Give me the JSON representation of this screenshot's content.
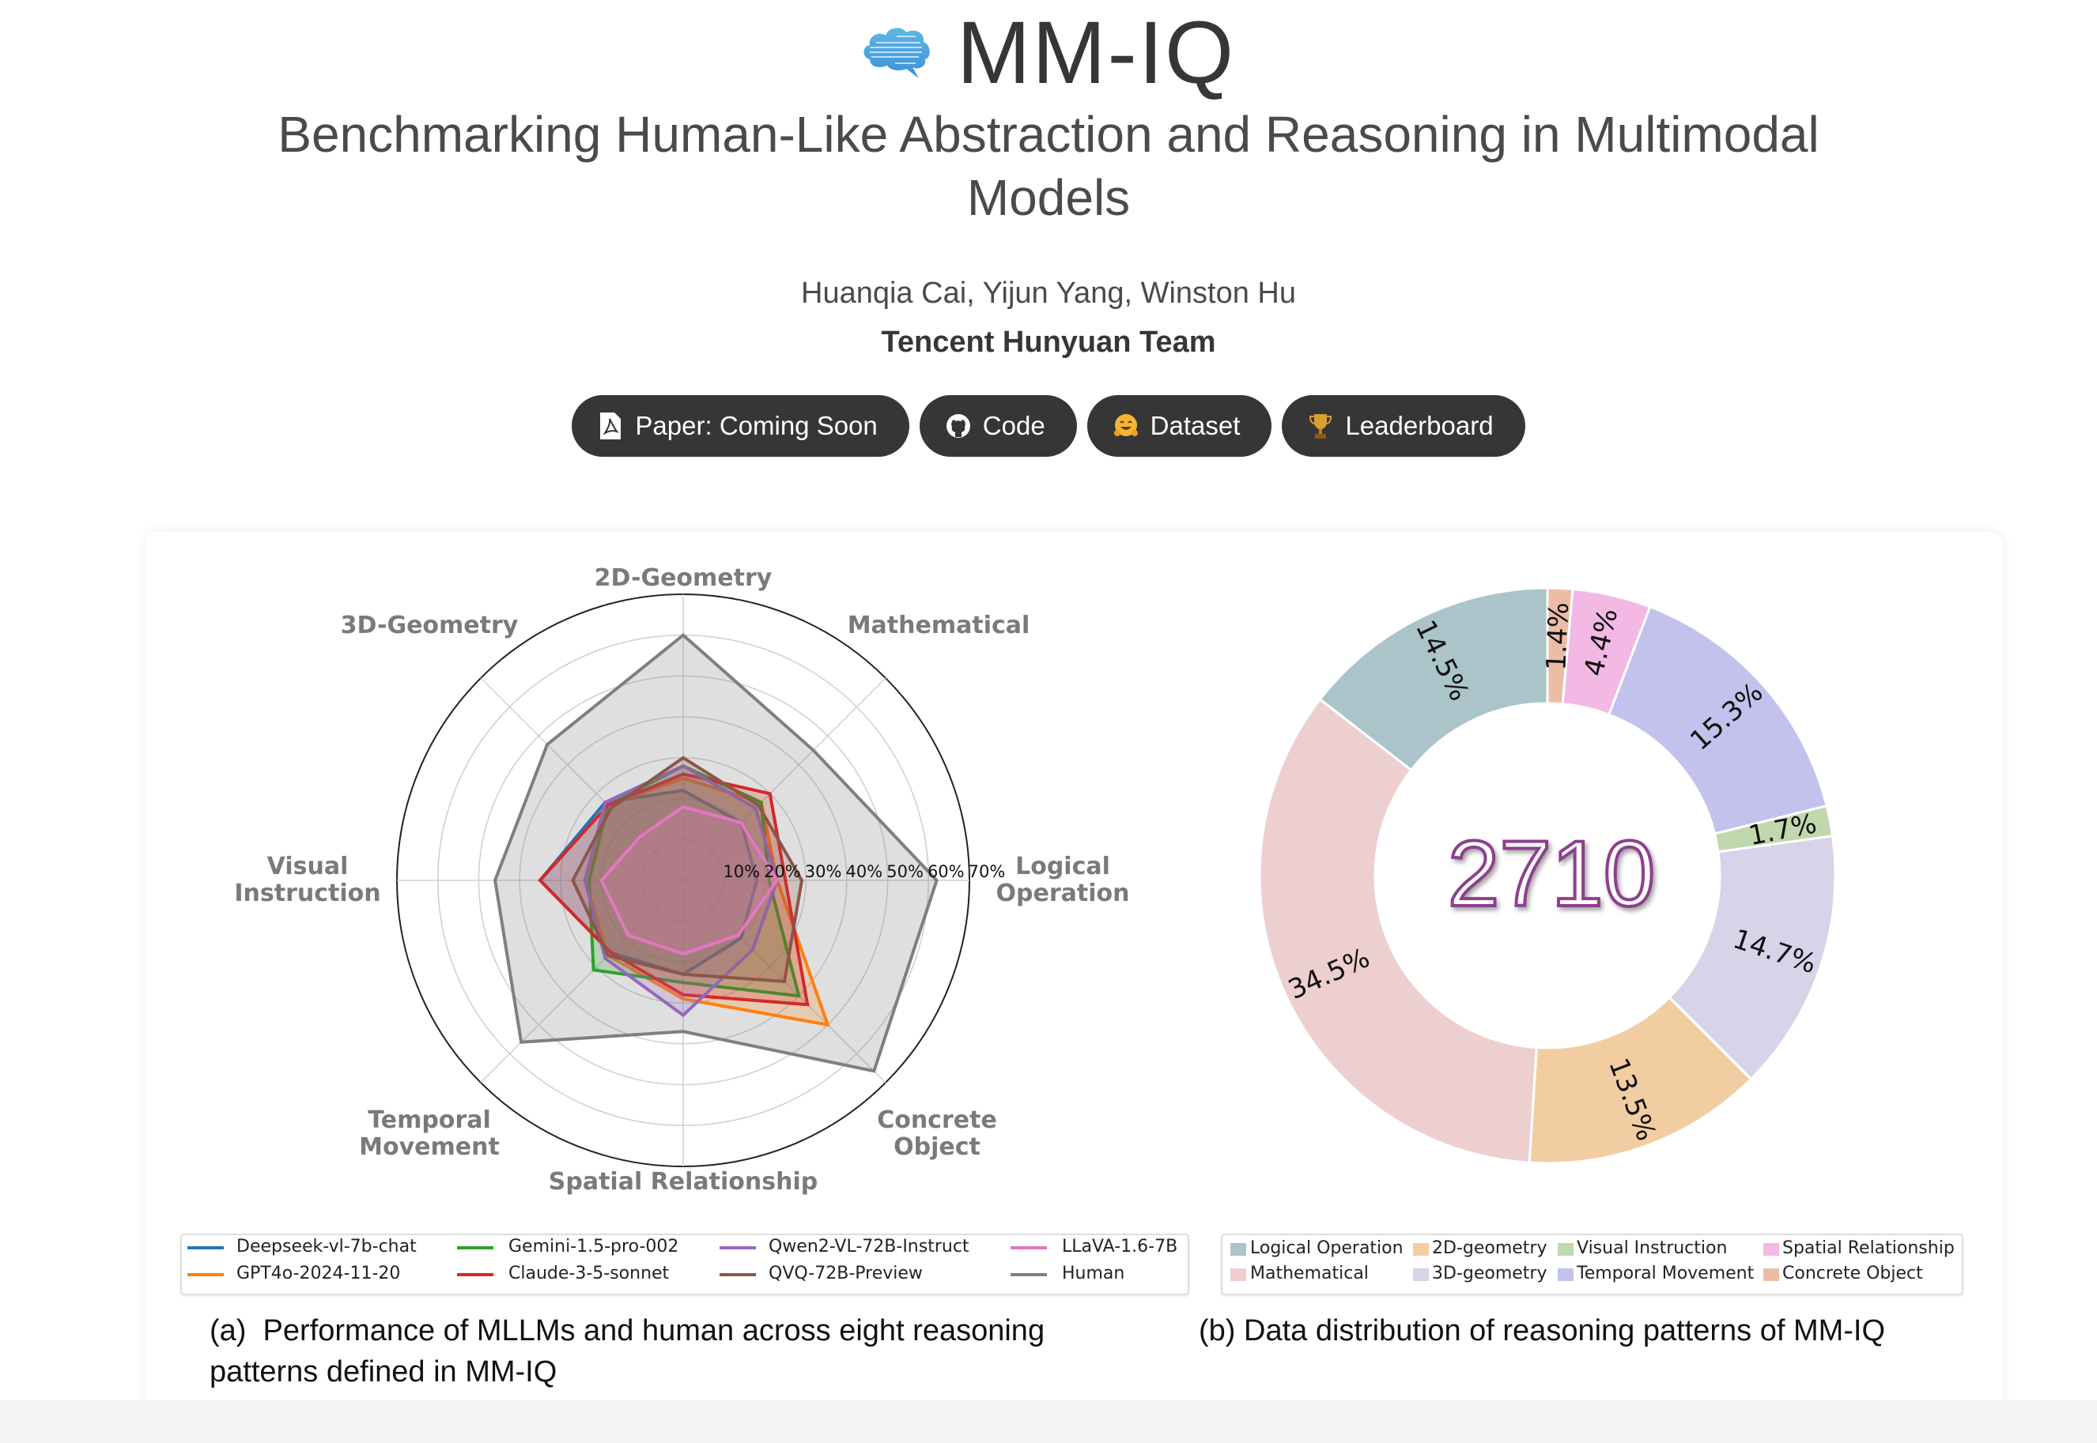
{
  "header": {
    "logo_icon": "brain-cloud-icon",
    "title": "MM-IQ",
    "subtitle": "Benchmarking Human-Like Abstraction and Reasoning in Multimodal Models",
    "authors": "Huanqia Cai, Yijun Yang, Winston Hu",
    "team": "Tencent Hunyuan Team"
  },
  "buttons": [
    {
      "label": "Paper: Coming Soon",
      "icon": "pdf-file-icon"
    },
    {
      "label": "Code",
      "icon": "github-icon"
    },
    {
      "label": "Dataset",
      "icon": "hugging-face-icon"
    },
    {
      "label": "Leaderboard",
      "icon": "trophy-icon"
    }
  ],
  "captions": {
    "a_line1": "(a)  Performance of MLLMs and human across eight reasoning",
    "a_line2": "patterns defined in MM-IQ",
    "b": "(b) Data distribution of reasoning patterns of MM-IQ"
  },
  "chart_data": [
    {
      "type": "radar",
      "axes": [
        "2D-Geometry",
        "Mathematical",
        "Logical Operation",
        "Concrete Object",
        "Spatial Relationship",
        "Temporal Movement",
        "Visual Instruction",
        "3D-Geometry"
      ],
      "axis_label_lines": [
        [
          "2D-Geometry"
        ],
        [
          "Mathematical"
        ],
        [
          "Logical",
          "Operation"
        ],
        [
          "Concrete",
          "Object"
        ],
        [
          "Spatial Relationship"
        ],
        [
          "Temporal",
          "Movement"
        ],
        [
          "Visual",
          "Instruction"
        ],
        [
          "3D-Geometry"
        ]
      ],
      "rlim": [
        0,
        70
      ],
      "r_ticks": [
        "10%",
        "20%",
        "30%",
        "40%",
        "50%",
        "60%",
        "70%"
      ],
      "grid": true,
      "legend_position": "bottom",
      "series": [
        {
          "name": "Human",
          "color": "#7f7f7f",
          "values": [
            60,
            45,
            62,
            66,
            37,
            56,
            46,
            47
          ]
        },
        {
          "name": "Deepseek-vl-7b-chat",
          "color": "#1f77b4",
          "values": [
            22,
            20,
            18,
            20,
            23,
            25,
            35,
            27
          ]
        },
        {
          "name": "GPT4o-2024-11-20",
          "color": "#ff7f0e",
          "values": [
            25,
            27,
            23,
            50,
            29,
            26,
            24,
            26
          ]
        },
        {
          "name": "Gemini-1.5-pro-002",
          "color": "#2ca02c",
          "values": [
            28,
            27,
            21,
            40,
            25,
            31,
            23,
            26
          ]
        },
        {
          "name": "Claude-3-5-sonnet",
          "color": "#d62728",
          "values": [
            26,
            30,
            25,
            43,
            28,
            25,
            35,
            26
          ]
        },
        {
          "name": "Qwen2-VL-72B-Instruct",
          "color": "#9467bd",
          "values": [
            28,
            25,
            23,
            24,
            33,
            27,
            24,
            27
          ]
        },
        {
          "name": "QVQ-72B-Preview",
          "color": "#8c564b",
          "values": [
            30,
            26,
            29,
            35,
            23,
            26,
            27,
            25
          ]
        },
        {
          "name": "LLaVA-1.6-7B",
          "color": "#e377c2",
          "values": [
            18,
            20,
            23,
            19,
            18,
            19,
            20,
            15
          ]
        }
      ],
      "legend_order": [
        "Deepseek-vl-7b-chat",
        "GPT4o-2024-11-20",
        "Gemini-1.5-pro-002",
        "Claude-3-5-sonnet",
        "Qwen2-VL-72B-Instruct",
        "QVQ-72B-Preview",
        "LLaVA-1.6-7B",
        "Human"
      ]
    },
    {
      "type": "pie",
      "donut": true,
      "center_label": "2710",
      "direction": "clockwise from top",
      "slices": [
        {
          "label": "Concrete Object",
          "value": 1.4,
          "text": "1.4%",
          "color": "#edbca5"
        },
        {
          "label": "Spatial Relationship",
          "value": 4.4,
          "text": "4.4%",
          "color": "#f3b8e3"
        },
        {
          "label": "Temporal Movement",
          "value": 15.3,
          "text": "15.3%",
          "color": "#c3c2ec"
        },
        {
          "label": "Visual Instruction",
          "value": 1.7,
          "text": "1.7%",
          "color": "#bfd8ad"
        },
        {
          "label": "3D-geometry",
          "value": 14.7,
          "text": "14.7%",
          "color": "#d8d3e8"
        },
        {
          "label": "2D-geometry",
          "value": 13.5,
          "text": "13.5%",
          "color": "#f2cda2"
        },
        {
          "label": "Mathematical",
          "value": 34.5,
          "text": "34.5%",
          "color": "#eecfcf"
        },
        {
          "label": "Logical Operation",
          "value": 14.5,
          "text": "14.5%",
          "color": "#aac4c9"
        }
      ],
      "legend_position": "bottom",
      "legend_order": [
        "Logical Operation",
        "2D-geometry",
        "Visual Instruction",
        "Spatial Relationship",
        "Mathematical",
        "3D-geometry",
        "Temporal Movement",
        "Concrete Object"
      ]
    }
  ]
}
